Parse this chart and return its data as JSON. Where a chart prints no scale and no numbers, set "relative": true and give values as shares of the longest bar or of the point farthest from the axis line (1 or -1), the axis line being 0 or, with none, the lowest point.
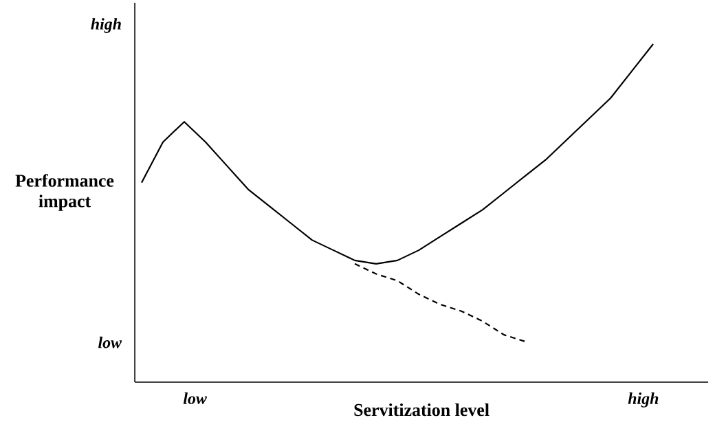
{
  "chart_data": {
    "type": "line",
    "xlabel": "Servitization level",
    "ylabel": "Performance impact",
    "relative": true,
    "annotations": [
      "low",
      "high",
      "low",
      "high"
    ],
    "categories": [
      null,
      null,
      null,
      null,
      null,
      null,
      null,
      null,
      null,
      null,
      null,
      null,
      null,
      null,
      null,
      null,
      null,
      null,
      null,
      null,
      null,
      null,
      null,
      null,
      null
    ],
    "series": [
      {
        "color": "#000000",
        "values": [
          0.59,
          0.71,
          0.77,
          0.71,
          0.64,
          0.57,
          0.52,
          0.47,
          0.42,
          0.39,
          0.36,
          0.35,
          0.36,
          0.39,
          0.43,
          0.47,
          0.51,
          0.56,
          0.61,
          0.66,
          0.72,
          0.78,
          0.84,
          0.92,
          1
        ]
      },
      {
        "color": "#000000",
        "line_style": "dashed",
        "values": [
          null,
          null,
          null,
          null,
          null,
          null,
          null,
          null,
          null,
          null,
          0.35,
          0.32,
          0.3,
          0.26,
          0.23,
          0.21,
          0.18,
          0.14,
          0.12,
          null,
          null,
          null,
          null,
          null,
          null
        ]
      }
    ]
  }
}
